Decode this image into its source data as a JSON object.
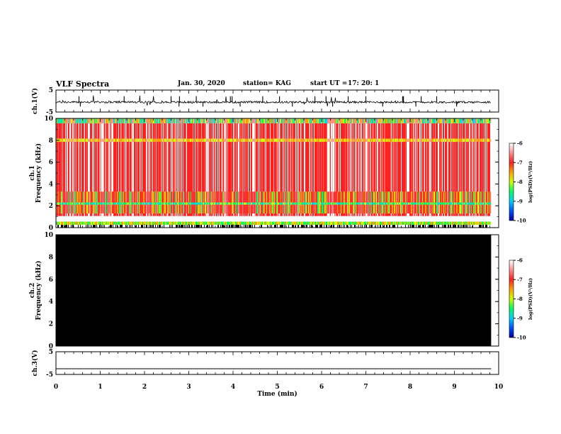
{
  "header": {
    "title": "VLF Spectra",
    "date": "Jan. 30, 2020",
    "station": "station= KAG",
    "start_label": "start  UT  =",
    "start_time": "17: 20: 1"
  },
  "colors": {
    "background": "#ffffff",
    "axis": "#000000",
    "colormap": [
      "#0000a0",
      "#0050ff",
      "#00d0ff",
      "#00ff60",
      "#d0ff00",
      "#ffa000",
      "#ff2020",
      "#ff9090",
      "#ffffff"
    ]
  },
  "chart_data": [
    {
      "type": "line",
      "panel": "ch1-waveform",
      "ylabel": "ch.1(V)",
      "yticks": [
        "5",
        "-5"
      ],
      "ylim": [
        -5,
        5
      ],
      "xlim": [
        0,
        10
      ],
      "baseline": -0.5,
      "series": [
        {
          "values": "noisy waveform near -0.5 V with spikes to ~2 V and ~-2 V",
          "x_end": 9.83
        }
      ]
    },
    {
      "type": "heatmap",
      "panel": "ch1-spectrogram",
      "ylabel": "ch.1\nFrequency (kHz)",
      "ylabel_lines": [
        "ch.1",
        "Frequency (kHz)"
      ],
      "yticks": [
        "0",
        "2",
        "4",
        "6",
        "8",
        "10"
      ],
      "ylim": [
        0,
        10
      ],
      "xlim": [
        0,
        10
      ],
      "x_end": 9.83,
      "content": "broadband emissions, strong red/white 1-10 kHz, enhanced bands near 8 kHz, 9.6-10 kHz and 1.2-3.5 kHz, data gap near 0.6-1.0 kHz"
    },
    {
      "type": "heatmap",
      "panel": "ch2-spectrogram",
      "ylabel": "ch.2\nFrequency (kHz)",
      "ylabel_lines": [
        "ch.2",
        "Frequency (kHz)"
      ],
      "yticks": [
        "0",
        "2",
        "4",
        "6",
        "8",
        "10"
      ],
      "ylim": [
        0,
        10
      ],
      "xlim": [
        0,
        10
      ],
      "x_end": 9.83,
      "content": "uniformly black (no signal)"
    },
    {
      "type": "line",
      "panel": "ch3-waveform",
      "ylabel": "ch.3(V)",
      "yticks": [
        "5",
        "-5"
      ],
      "ylim": [
        -5,
        5
      ],
      "xlim": [
        0,
        10
      ],
      "series": [
        {
          "values": "flat line at -2.5 V",
          "constant": -2.5,
          "x_end": 9.83
        }
      ]
    }
  ],
  "xaxis": {
    "label": "Time  (min)",
    "ticks": [
      "0",
      "1",
      "2",
      "3",
      "4",
      "5",
      "6",
      "7",
      "8",
      "9",
      "10"
    ]
  },
  "colorbars": [
    {
      "label": "log(PSD)(V²/Hz)",
      "ticks": [
        "-6",
        "-7",
        "-8",
        "-9",
        "-10"
      ],
      "range": [
        -10,
        -6
      ]
    },
    {
      "label": "log(PSD)(V²/Hz)",
      "ticks": [
        "-6",
        "-7",
        "-8",
        "-9",
        "-10"
      ],
      "range": [
        -10,
        -6
      ]
    }
  ]
}
